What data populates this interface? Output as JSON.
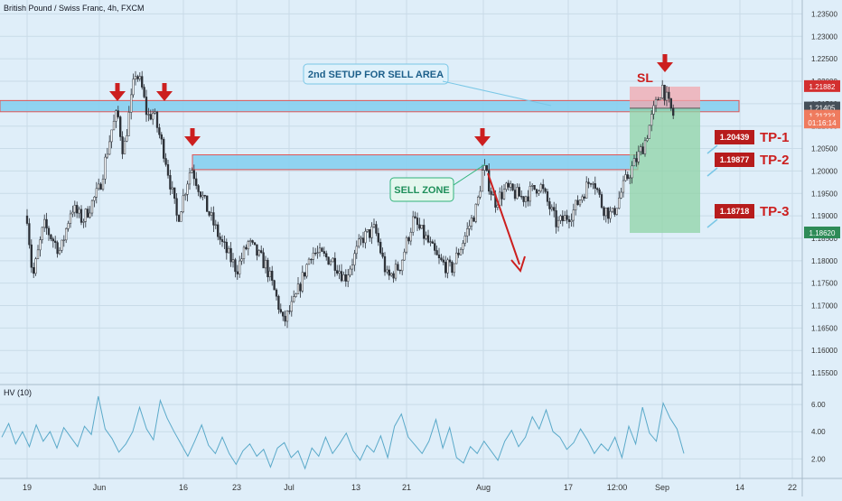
{
  "header": {
    "title": "British Pound / Swiss Franc, 4h, FXCM"
  },
  "chart_data": [
    {
      "type": "candlestick",
      "title": "British Pound / Swiss Franc, 4h, FXCM",
      "price_axis_ticks": [
        "1.23500",
        "1.23000",
        "1.22500",
        "1.22000",
        "1.21500",
        "1.21000",
        "1.20500",
        "1.20000",
        "1.19500",
        "1.19000",
        "1.18500",
        "1.18000",
        "1.17500",
        "1.17000",
        "1.16500",
        "1.16000",
        "1.15500"
      ],
      "price_axis_values": [
        1.235,
        1.23,
        1.225,
        1.22,
        1.215,
        1.21,
        1.205,
        1.2,
        1.195,
        1.19,
        1.185,
        1.18,
        1.175,
        1.17,
        1.165,
        1.16,
        1.155
      ],
      "ylim": [
        1.152,
        1.2375
      ],
      "date_labels": [
        "19",
        "Jun",
        "16",
        "23",
        "Jul",
        "13",
        "21",
        "Aug",
        "17",
        "12:00",
        "Sep",
        "14",
        "22"
      ],
      "approx_path": [
        {
          "date": "May 19",
          "close": 1.19
        },
        {
          "date": "May 20",
          "close": 1.176
        },
        {
          "date": "May 22",
          "close": 1.188
        },
        {
          "date": "May 25",
          "close": 1.182
        },
        {
          "date": "May 27",
          "close": 1.192
        },
        {
          "date": "May 29",
          "close": 1.189
        },
        {
          "date": "Jun 1",
          "close": 1.196
        },
        {
          "date": "Jun 3",
          "close": 1.209
        },
        {
          "date": "Jun 4",
          "close": 1.213
        },
        {
          "date": "Jun 5",
          "close": 1.204
        },
        {
          "date": "Jun 7",
          "close": 1.222
        },
        {
          "date": "Jun 8",
          "close": 1.219
        },
        {
          "date": "Jun 9",
          "close": 1.212
        },
        {
          "date": "Jun 10",
          "close": 1.213
        },
        {
          "date": "Jun 12",
          "close": 1.203
        },
        {
          "date": "Jun 14",
          "close": 1.189
        },
        {
          "date": "Jun 16",
          "close": 1.201
        },
        {
          "date": "Jun 18",
          "close": 1.192
        },
        {
          "date": "Jun 20",
          "close": 1.184
        },
        {
          "date": "Jun 22",
          "close": 1.178
        },
        {
          "date": "Jun 24",
          "close": 1.184
        },
        {
          "date": "Jun 27",
          "close": 1.179
        },
        {
          "date": "Jun 29",
          "close": 1.171
        },
        {
          "date": "Jun 30",
          "close": 1.166
        },
        {
          "date": "Jul 2",
          "close": 1.171
        },
        {
          "date": "Jul 5",
          "close": 1.182
        },
        {
          "date": "Jul 9",
          "close": 1.18
        },
        {
          "date": "Jul 11",
          "close": 1.176
        },
        {
          "date": "Jul 14",
          "close": 1.185
        },
        {
          "date": "Jul 16",
          "close": 1.187
        },
        {
          "date": "Jul 18",
          "close": 1.176
        },
        {
          "date": "Jul 20",
          "close": 1.179
        },
        {
          "date": "Jul 22",
          "close": 1.189
        },
        {
          "date": "Jul 24",
          "close": 1.185
        },
        {
          "date": "Jul 26",
          "close": 1.18
        },
        {
          "date": "Jul 28",
          "close": 1.178
        },
        {
          "date": "Jul 30",
          "close": 1.185
        },
        {
          "date": "Aug 1",
          "close": 1.192
        },
        {
          "date": "Aug 2",
          "close": 1.201
        },
        {
          "date": "Aug 4",
          "close": 1.193
        },
        {
          "date": "Aug 6",
          "close": 1.196
        },
        {
          "date": "Aug 9",
          "close": 1.194
        },
        {
          "date": "Aug 12",
          "close": 1.197
        },
        {
          "date": "Aug 15",
          "close": 1.188
        },
        {
          "date": "Aug 18",
          "close": 1.191
        },
        {
          "date": "Aug 20",
          "close": 1.195
        },
        {
          "date": "Aug 22",
          "close": 1.199
        },
        {
          "date": "Aug 24",
          "close": 1.192
        },
        {
          "date": "Aug 26",
          "close": 1.19
        },
        {
          "date": "Aug 28",
          "close": 1.198
        },
        {
          "date": "Aug 30",
          "close": 1.206
        },
        {
          "date": "Aug 31",
          "close": 1.213
        },
        {
          "date": "Sep 1",
          "close": 1.219
        },
        {
          "date": "Sep 2",
          "close": 1.215
        },
        {
          "date": "Sep 3",
          "close": 1.212
        }
      ],
      "price_markers": [
        {
          "label": "1.21882",
          "value": 1.21882,
          "color": "#d32f2f"
        },
        {
          "label": "1.21405",
          "value": 1.21405,
          "color": "#454f59"
        },
        {
          "label": "1.21223",
          "value": 1.21223,
          "color": "#ef7b5e"
        },
        {
          "label": "01:16:14",
          "value": 1.2107,
          "color": "#ef7b5e"
        },
        {
          "label": "1.18620",
          "value": 1.1862,
          "color": "#2e8b57"
        }
      ],
      "zones": [
        {
          "name": "upper-sell-area",
          "from": 1.2132,
          "to": 1.2157,
          "color": "#87cfef"
        },
        {
          "name": "sell-zone",
          "from": 1.2003,
          "to": 1.2036,
          "color": "#87cfef"
        }
      ],
      "position_tool": {
        "entry": 1.214,
        "stop": 1.2188,
        "target": 1.1862
      },
      "annotations": {
        "setup_callout": "2nd SETUP FOR SELL AREA",
        "sell_zone_callout": "SELL ZONE",
        "sl_label": "SL"
      },
      "targets": [
        {
          "price_label": "1.20439",
          "name": "TP-1",
          "value": 1.20439
        },
        {
          "price_label": "1.19877",
          "name": "TP-2",
          "value": 1.19877
        },
        {
          "price_label": "1.18718",
          "name": "TP-3",
          "value": 1.18718
        }
      ],
      "down_arrows_at": [
        "Jun 3",
        "Jun 9",
        "Jun 16",
        "Aug 1",
        "Sep 1"
      ]
    },
    {
      "type": "line",
      "title": "HV (10)",
      "y_ticks": [
        "6.00",
        "4.00",
        "2.00"
      ],
      "y_tick_values": [
        6,
        4,
        2
      ],
      "ylim": [
        0.7,
        7.2
      ],
      "series": [
        {
          "values": [
            3.6,
            4.6,
            3.1,
            4.0,
            2.9,
            4.5,
            3.3,
            4.0,
            2.8,
            4.3,
            3.6,
            2.9,
            4.4,
            3.8,
            6.6,
            4.2,
            3.5,
            2.5,
            3.1,
            4.0,
            5.8,
            4.2,
            3.4,
            6.3,
            5.0,
            4.0,
            3.1,
            2.2,
            3.3,
            4.5,
            3.0,
            2.4,
            3.6,
            2.4,
            1.6,
            2.6,
            3.1,
            2.2,
            2.7,
            1.4,
            2.8,
            3.2,
            2.1,
            2.6,
            1.3,
            2.8,
            2.2,
            3.6,
            2.4,
            3.1,
            3.9,
            2.6,
            1.9,
            3.0,
            2.5,
            3.7,
            2.1,
            4.4,
            5.3,
            3.6,
            3.0,
            2.4,
            3.3,
            4.9,
            2.8,
            4.3,
            2.1,
            1.7,
            2.9,
            2.4,
            3.3,
            2.6,
            1.9,
            3.3,
            4.1,
            2.9,
            3.6,
            5.1,
            4.2,
            5.6,
            4.0,
            3.6,
            2.7,
            3.2,
            4.2,
            3.4,
            2.4,
            3.1,
            2.6,
            3.6,
            2.1,
            4.4,
            3.1,
            5.8,
            3.9,
            3.3,
            6.1,
            5.0,
            4.2,
            2.4
          ]
        }
      ]
    }
  ]
}
